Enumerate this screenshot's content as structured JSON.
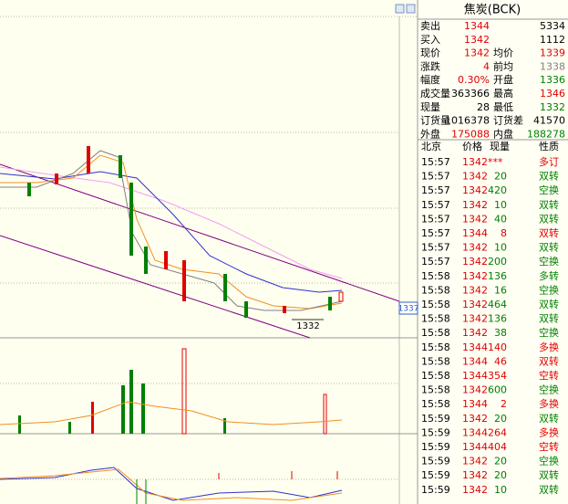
{
  "header": {
    "title": "焦炭(BCK)"
  },
  "chart": {
    "axis_label": "1337",
    "low_label": "1332"
  },
  "quote": {
    "rows": [
      {
        "cells": [
          "卖出",
          "1344",
          "5334"
        ],
        "colors": [
          "#000000",
          "#e00000",
          "#000000"
        ]
      },
      {
        "cells": [
          "买入",
          "1342",
          "1112"
        ],
        "colors": [
          "#000000",
          "#e00000",
          "#000000"
        ]
      },
      {
        "cells": [
          "现价",
          "1342",
          "均价",
          "1339"
        ],
        "colors": [
          "#000000",
          "#e00000",
          "#000000",
          "#e00000"
        ]
      },
      {
        "cells": [
          "涨跌",
          "4",
          "前均",
          "1338"
        ],
        "colors": [
          "#000000",
          "#e00000",
          "#000000",
          "#808080"
        ]
      },
      {
        "cells": [
          "幅度",
          "0.30%",
          "开盘",
          "1336"
        ],
        "colors": [
          "#000000",
          "#e00000",
          "#000000",
          "#008000"
        ]
      },
      {
        "cells": [
          "成交量",
          "363366",
          "最高",
          "1346"
        ],
        "colors": [
          "#000000",
          "#000000",
          "#000000",
          "#e00000"
        ]
      },
      {
        "cells": [
          "现量",
          "28",
          "最低",
          "1332"
        ],
        "colors": [
          "#000000",
          "#000000",
          "#000000",
          "#008000"
        ]
      },
      {
        "cells": [
          "订货量",
          "1016378",
          "订货差",
          "41570"
        ],
        "colors": [
          "#000000",
          "#000000",
          "#000000",
          "#000000"
        ]
      },
      {
        "cells": [
          "外盘",
          "175088",
          "内盘",
          "188278"
        ],
        "colors": [
          "#000000",
          "#e00000",
          "#000000",
          "#008000"
        ]
      }
    ]
  },
  "trades": {
    "header": [
      "北京",
      "价格",
      "现量",
      "性质"
    ],
    "rows": [
      {
        "time": "15:57",
        "price": "1342***",
        "type": "多订",
        "color": "#e00000"
      },
      {
        "time": "15:57",
        "price": "1342",
        "volume": "20",
        "type": "双转",
        "color": "#008000"
      },
      {
        "time": "15:57",
        "price": "1342",
        "volume": "420",
        "type": "空换",
        "color": "#008000"
      },
      {
        "time": "15:57",
        "price": "1342",
        "volume": "10",
        "type": "双转",
        "color": "#008000"
      },
      {
        "time": "15:57",
        "price": "1342",
        "volume": "40",
        "type": "双转",
        "color": "#008000"
      },
      {
        "time": "15:57",
        "price": "1344",
        "volume": "8",
        "type": "双转",
        "color": "#e00000"
      },
      {
        "time": "15:57",
        "price": "1342",
        "volume": "10",
        "type": "双转",
        "color": "#008000"
      },
      {
        "time": "15:57",
        "price": "1342",
        "volume": "200",
        "type": "空换",
        "color": "#008000"
      },
      {
        "time": "15:58",
        "price": "1342",
        "volume": "136",
        "type": "多转",
        "color": "#008000"
      },
      {
        "time": "15:58",
        "price": "1342",
        "volume": "16",
        "type": "空换",
        "color": "#008000"
      },
      {
        "time": "15:58",
        "price": "1342",
        "volume": "464",
        "type": "双转",
        "color": "#008000"
      },
      {
        "time": "15:58",
        "price": "1342",
        "volume": "136",
        "type": "双转",
        "color": "#008000"
      },
      {
        "time": "15:58",
        "price": "1342",
        "volume": "38",
        "type": "空换",
        "color": "#008000"
      },
      {
        "time": "15:58",
        "price": "1344",
        "volume": "140",
        "type": "多换",
        "color": "#e00000"
      },
      {
        "time": "15:58",
        "price": "1344",
        "volume": "46",
        "type": "双转",
        "color": "#e00000"
      },
      {
        "time": "15:58",
        "price": "1344",
        "volume": "354",
        "type": "空转",
        "color": "#e00000"
      },
      {
        "time": "15:58",
        "price": "1342",
        "volume": "600",
        "type": "空换",
        "color": "#008000"
      },
      {
        "time": "15:58",
        "price": "1344",
        "volume": "2",
        "type": "多换",
        "color": "#e00000"
      },
      {
        "time": "15:59",
        "price": "1342",
        "volume": "20",
        "type": "双转",
        "color": "#008000"
      },
      {
        "time": "15:59",
        "price": "1344",
        "volume": "264",
        "type": "多换",
        "color": "#e00000"
      },
      {
        "time": "15:59",
        "price": "1344",
        "volume": "404",
        "type": "空转",
        "color": "#e00000"
      },
      {
        "time": "15:59",
        "price": "1342",
        "volume": "20",
        "type": "空换",
        "color": "#008000"
      },
      {
        "time": "15:59",
        "price": "1342",
        "volume": "20",
        "type": "双转",
        "color": "#008000"
      },
      {
        "time": "15:59",
        "price": "1342",
        "volume": "10",
        "type": "双转",
        "color": "#008000"
      }
    ]
  }
}
